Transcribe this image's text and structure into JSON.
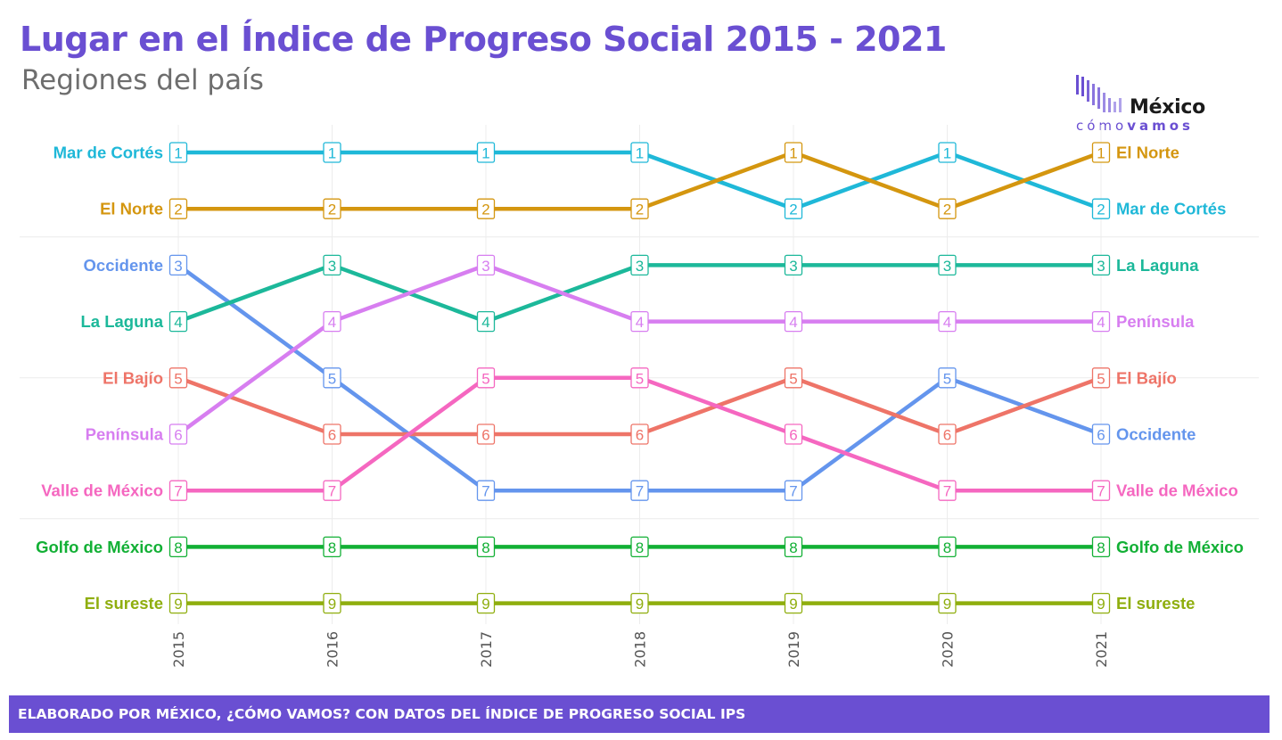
{
  "header": {
    "title": "Lugar en el Índice de Progreso Social 2015 - 2021",
    "subtitle": "Regiones del país"
  },
  "logo": {
    "name": "México",
    "tagline_light": "cómo",
    "tagline_bold": "vamos"
  },
  "footer": {
    "text": "ELABORADO POR MÉXICO, ¿CÓMO VAMOS? CON DATOS DEL ÍNDICE DE PROGRESO SOCIAL IPS"
  },
  "chart_data": {
    "type": "line",
    "variant": "bump",
    "x": [
      "2015",
      "2016",
      "2017",
      "2018",
      "2019",
      "2020",
      "2021"
    ],
    "ylim": [
      1,
      9
    ],
    "y_reversed": true,
    "grid": true,
    "data_labels": true,
    "series": [
      {
        "name": "Mar de Cortés",
        "color": "#1fb8d8",
        "values": [
          1,
          1,
          1,
          1,
          2,
          1,
          2
        ]
      },
      {
        "name": "El Norte",
        "color": "#d4960f",
        "values": [
          2,
          2,
          2,
          2,
          1,
          2,
          1
        ]
      },
      {
        "name": "Occidente",
        "color": "#6495ed",
        "values": [
          3,
          5,
          7,
          7,
          7,
          5,
          6
        ]
      },
      {
        "name": "La Laguna",
        "color": "#1cb89a",
        "values": [
          4,
          3,
          4,
          3,
          3,
          3,
          3
        ]
      },
      {
        "name": "El Bajío",
        "color": "#ee7468",
        "values": [
          5,
          6,
          6,
          6,
          5,
          6,
          5
        ]
      },
      {
        "name": "Península",
        "color": "#d77ef0",
        "values": [
          6,
          4,
          3,
          4,
          4,
          4,
          4
        ]
      },
      {
        "name": "Valle de México",
        "color": "#f567c0",
        "values": [
          7,
          7,
          5,
          5,
          6,
          7,
          7
        ]
      },
      {
        "name": "Golfo de México",
        "color": "#12b035",
        "values": [
          8,
          8,
          8,
          8,
          8,
          8,
          8
        ]
      },
      {
        "name": "El sureste",
        "color": "#8fae0e",
        "values": [
          9,
          9,
          9,
          9,
          9,
          9,
          9
        ]
      }
    ]
  }
}
